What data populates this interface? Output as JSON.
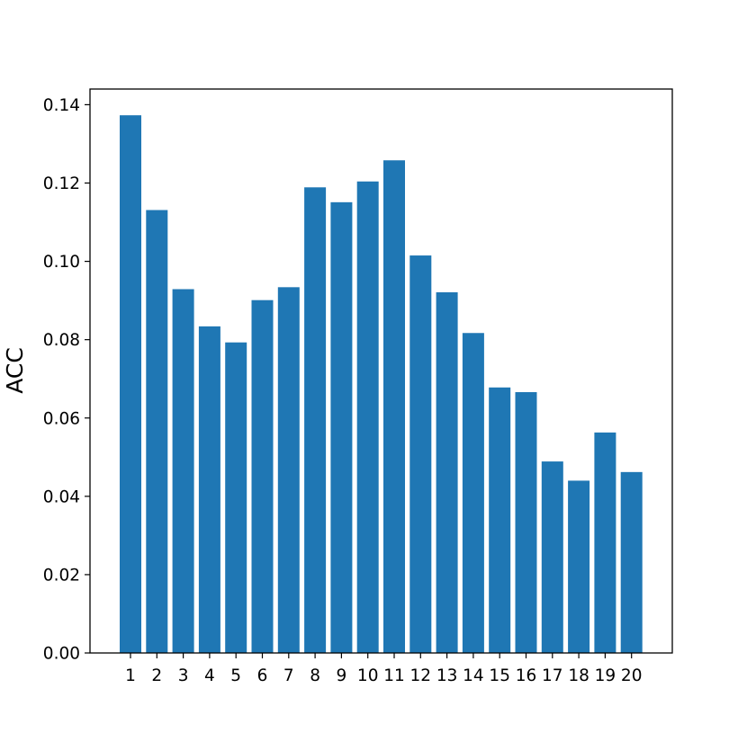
{
  "chart_data": {
    "type": "bar",
    "title": "",
    "xlabel": "",
    "ylabel": "ACC",
    "categories": [
      "1",
      "2",
      "3",
      "4",
      "5",
      "6",
      "7",
      "8",
      "9",
      "10",
      "11",
      "12",
      "13",
      "14",
      "15",
      "16",
      "17",
      "18",
      "19",
      "20"
    ],
    "values": [
      0.1373,
      0.1131,
      0.0929,
      0.0834,
      0.0793,
      0.0901,
      0.0934,
      0.1189,
      0.1151,
      0.1204,
      0.1258,
      0.1015,
      0.0921,
      0.0817,
      0.0678,
      0.0666,
      0.0489,
      0.044,
      0.0563,
      0.0462
    ],
    "ylim": [
      0,
      0.144
    ],
    "yticks": [
      0.0,
      0.02,
      0.04,
      0.06,
      0.08,
      0.1,
      0.12,
      0.14
    ],
    "ytick_labels": [
      "0.00",
      "0.02",
      "0.04",
      "0.06",
      "0.08",
      "0.10",
      "0.12",
      "0.14"
    ],
    "grid": false,
    "legend": "none",
    "bar_color": "#1f77b4",
    "axis_color": "#000000"
  }
}
